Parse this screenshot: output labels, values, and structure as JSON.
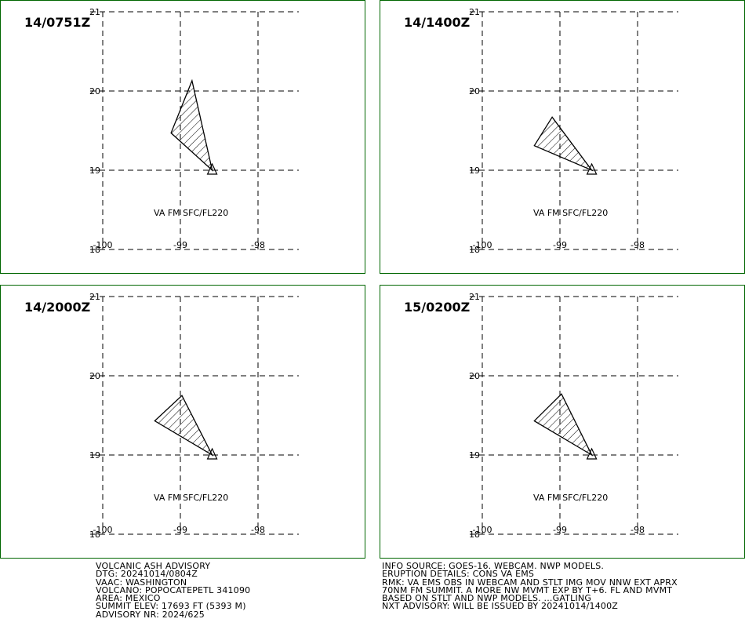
{
  "panels": [
    {
      "time": "14/0751Z",
      "va_text": "VA FM SFC/FL220",
      "polygon": [
        [
          -98.85,
          20.13
        ],
        [
          -99.12,
          19.47
        ],
        [
          -98.59,
          19.0
        ]
      ]
    },
    {
      "time": "14/1400Z",
      "va_text": "VA FM SFC/FL220",
      "polygon": [
        [
          -99.1,
          19.67
        ],
        [
          -99.33,
          19.31
        ],
        [
          -98.59,
          19.0
        ]
      ]
    },
    {
      "time": "14/2000Z",
      "va_text": "VA FM SFC/FL220",
      "polygon": [
        [
          -98.98,
          19.75
        ],
        [
          -99.33,
          19.43
        ],
        [
          -98.59,
          19.0
        ]
      ]
    },
    {
      "time": "15/0200Z",
      "va_text": "VA FM SFC/FL220",
      "polygon": [
        [
          -98.98,
          19.77
        ],
        [
          -99.33,
          19.43
        ],
        [
          -98.59,
          19.0
        ]
      ]
    }
  ],
  "map": {
    "lon_ticks": [
      "-100",
      "-99",
      "-98"
    ],
    "lat_ticks": [
      "21",
      "20",
      "19",
      "18"
    ],
    "lon_range": [
      -100,
      -98
    ],
    "lat_range": [
      18,
      21
    ],
    "volcano": {
      "lon": -98.59,
      "lat": 19.0,
      "symbol": "triangle"
    }
  },
  "advisory_left": [
    "VOLCANIC ASH ADVISORY",
    "DTG: 20241014/0804Z",
    "VAAC: WASHINGTON",
    "VOLCANO: POPOCATEPETL 341090",
    "AREA: MEXICO",
    "SUMMIT ELEV: 17693 FT (5393 M)",
    "ADVISORY NR: 2024/625"
  ],
  "advisory_right": [
    "INFO SOURCE: GOES-16. WEBCAM. NWP MODELS.",
    "ERUPTION DETAILS: CONS VA EMS",
    "RMK: VA EMS OBS IN WEBCAM AND STLT IMG MOV NNW EXT APRX",
    "70NM FM SUMMIT. A MORE NW MVMT EXP BY T+6. FL AND MVMT",
    "BASED ON STLT AND NWP MODELS. ...GATLING",
    "NXT ADVISORY: WILL BE ISSUED BY 20241014/1400Z"
  ]
}
